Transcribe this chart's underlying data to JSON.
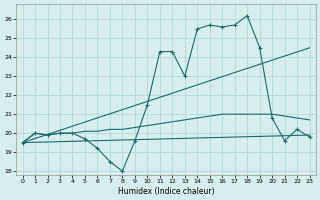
{
  "xlabel": "Humidex (Indice chaleur)",
  "xlim": [
    -0.5,
    23.5
  ],
  "ylim": [
    17.8,
    26.8
  ],
  "yticks": [
    18,
    19,
    20,
    21,
    22,
    23,
    24,
    25,
    26
  ],
  "xticks": [
    0,
    1,
    2,
    3,
    4,
    5,
    6,
    7,
    8,
    9,
    10,
    11,
    12,
    13,
    14,
    15,
    16,
    17,
    18,
    19,
    20,
    21,
    22,
    23
  ],
  "xtick_labels": [
    "0",
    "1",
    "2",
    "3",
    "4",
    "5",
    "6",
    "7",
    "8",
    "9",
    "10",
    "11",
    "12",
    "13",
    "14",
    "15",
    "16",
    "17",
    "18",
    "19",
    "20",
    "21",
    "22",
    "23"
  ],
  "background_color": "#d8eeee",
  "grid_color": "#aed4d4",
  "line_color": "#1a6b6b",
  "line1_x": [
    0,
    1,
    2,
    3,
    4,
    5,
    6,
    7,
    8,
    9,
    10,
    11,
    12,
    13,
    14,
    15,
    16,
    17,
    18,
    19,
    20,
    21,
    22,
    23
  ],
  "line1_y": [
    19.5,
    20.0,
    19.9,
    20.0,
    20.0,
    19.7,
    19.2,
    18.5,
    18.0,
    19.6,
    21.5,
    24.3,
    24.3,
    23.0,
    25.5,
    25.7,
    25.6,
    25.7,
    26.2,
    24.5,
    20.8,
    19.6,
    20.2,
    19.8
  ],
  "line2_x": [
    0,
    23
  ],
  "line2_y": [
    19.5,
    24.5
  ],
  "line3_x": [
    0,
    1,
    2,
    3,
    4,
    5,
    6,
    7,
    8,
    9,
    10,
    11,
    12,
    13,
    14,
    15,
    16,
    17,
    18,
    19,
    20,
    21,
    22,
    23
  ],
  "line3_y": [
    19.5,
    20.0,
    19.9,
    20.0,
    20.0,
    20.1,
    20.1,
    20.2,
    20.2,
    20.3,
    20.4,
    20.5,
    20.6,
    20.7,
    20.8,
    20.9,
    21.0,
    21.0,
    21.0,
    21.0,
    21.0,
    20.9,
    20.8,
    20.7
  ],
  "line4_x": [
    0,
    23
  ],
  "line4_y": [
    19.5,
    19.9
  ]
}
